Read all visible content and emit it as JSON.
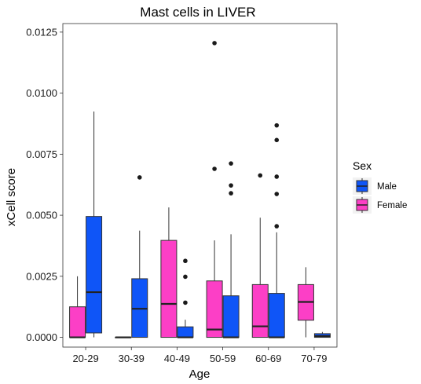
{
  "chart_data": {
    "type": "box",
    "title": "Mast cells in LIVER",
    "xlabel": "Age",
    "ylabel": "xCell score",
    "categories": [
      "20-29",
      "30-39",
      "40-49",
      "50-59",
      "60-69",
      "70-79"
    ],
    "y_ticks": [
      "0.0000",
      "0.0025",
      "0.0050",
      "0.0075",
      "0.0100",
      "0.0125"
    ],
    "y_tick_values": [
      0,
      0.0025,
      0.005,
      0.0075,
      0.01,
      0.0125
    ],
    "ylim": [
      -0.0004,
      0.01285
    ],
    "grid": false,
    "legend": {
      "title": "Sex",
      "position": "right",
      "entries": [
        {
          "name": "Male",
          "color": "#0f55f7"
        },
        {
          "name": "Female",
          "color": "#fc3fc6"
        }
      ]
    },
    "colors": {
      "Female": "#fc3fc6",
      "Male": "#0f55f7"
    },
    "series": [
      {
        "name": "Female",
        "boxes": [
          {
            "category": "20-29",
            "min": 0,
            "q1": 0,
            "median": 0,
            "q3": 0.00125,
            "max": 0.0025,
            "outliers": []
          },
          {
            "category": "30-39",
            "min": 0,
            "q1": 0,
            "median": 0,
            "q3": 0,
            "max": 0,
            "outliers": []
          },
          {
            "category": "40-49",
            "min": 0,
            "q1": 0,
            "median": 0.00137,
            "q3": 0.00397,
            "max": 0.00532,
            "outliers": []
          },
          {
            "category": "50-59",
            "min": 0,
            "q1": 0,
            "median": 0.00032,
            "q3": 0.00231,
            "max": 0.00397,
            "outliers": [
              0.0069,
              0.01205
            ]
          },
          {
            "category": "60-69",
            "min": 0,
            "q1": 0,
            "median": 0.00045,
            "q3": 0.00216,
            "max": 0.0049,
            "outliers": [
              0.00663
            ]
          },
          {
            "category": "70-79",
            "min": 0,
            "q1": 0.0007,
            "median": 0.00145,
            "q3": 0.00216,
            "max": 0.00287,
            "outliers": []
          }
        ]
      },
      {
        "name": "Male",
        "boxes": [
          {
            "category": "20-29",
            "min": 0,
            "q1": 0.00018,
            "median": 0.00185,
            "q3": 0.00495,
            "max": 0.00925,
            "outliers": []
          },
          {
            "category": "30-39",
            "min": 0,
            "q1": 0,
            "median": 0.00117,
            "q3": 0.0024,
            "max": 0.00437,
            "outliers": [
              0.00655
            ]
          },
          {
            "category": "40-49",
            "min": 0,
            "q1": 0,
            "median": 0,
            "q3": 0.00043,
            "max": 0.00072,
            "outliers": [
              0.00142,
              0.00248,
              0.00313
            ]
          },
          {
            "category": "50-59",
            "min": 0,
            "q1": 0,
            "median": 0,
            "q3": 0.0017,
            "max": 0.00422,
            "outliers": [
              0.0059,
              0.00622,
              0.00712
            ]
          },
          {
            "category": "60-69",
            "min": 0,
            "q1": 0,
            "median": 0,
            "q3": 0.0018,
            "max": 0.0043,
            "outliers": [
              0.00455,
              0.00587,
              0.00658,
              0.00808,
              0.00868
            ]
          },
          {
            "category": "70-79",
            "min": 0,
            "q1": 0,
            "median": 5e-05,
            "q3": 0.00015,
            "max": 0.00022,
            "outliers": []
          }
        ]
      }
    ]
  }
}
